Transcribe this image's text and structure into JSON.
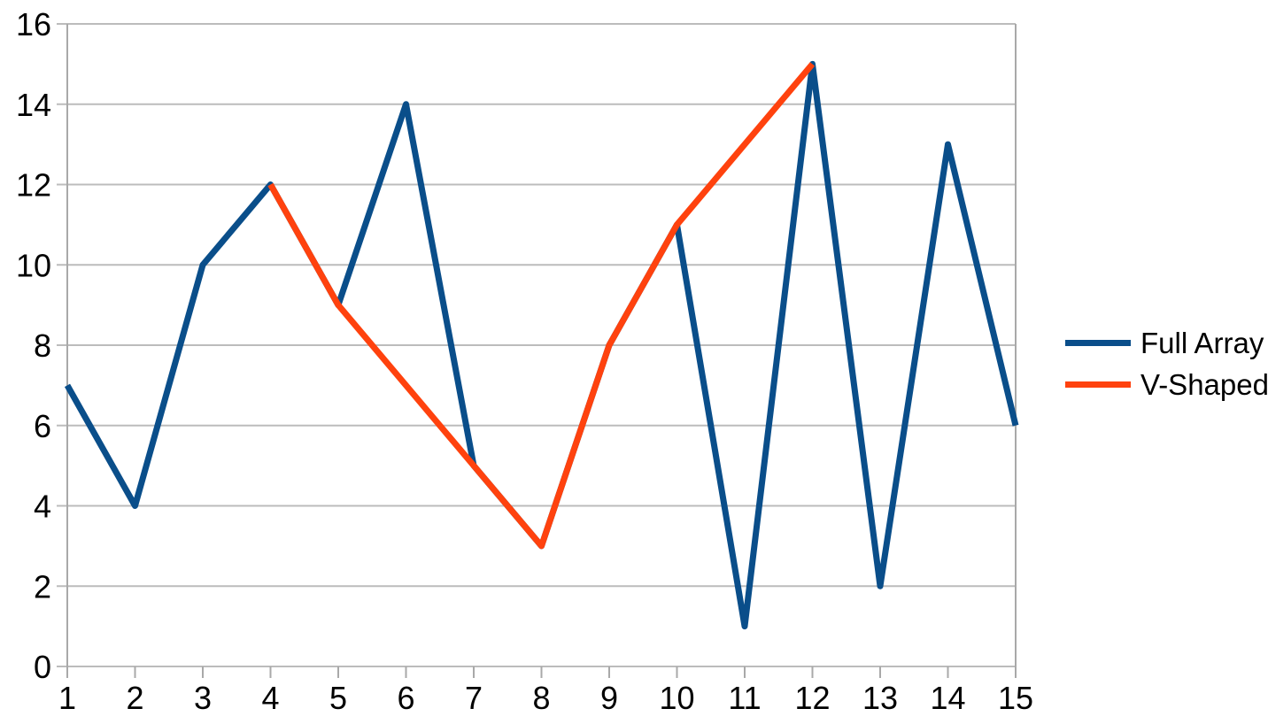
{
  "chart_data": {
    "type": "line",
    "title": "",
    "xlabel": "",
    "ylabel": "",
    "xlim": [
      1,
      15
    ],
    "ylim": [
      0,
      16
    ],
    "x_ticks": [
      "1",
      "2",
      "3",
      "4",
      "5",
      "6",
      "7",
      "8",
      "9",
      "10",
      "11",
      "12",
      "13",
      "14",
      "15"
    ],
    "y_ticks": [
      "0",
      "2",
      "4",
      "6",
      "8",
      "10",
      "12",
      "14",
      "16"
    ],
    "grid": "horizontal",
    "legend_position": "right",
    "series": [
      {
        "name": "Full Array",
        "color": "#0a4e8a",
        "x": [
          1,
          2,
          3,
          4,
          5,
          6,
          7,
          8,
          9,
          10,
          11,
          12,
          13,
          14,
          15
        ],
        "values": [
          7,
          4,
          10,
          12,
          9,
          14,
          5,
          3,
          8,
          11,
          1,
          15,
          2,
          13,
          6
        ]
      },
      {
        "name": "V-Shaped",
        "color": "#ff420e",
        "x": [
          4,
          5,
          6,
          7,
          8,
          9,
          10,
          11,
          12
        ],
        "values": [
          12,
          9,
          7,
          5,
          3,
          8,
          11,
          13,
          15
        ]
      }
    ]
  },
  "colors": {
    "grid": "#bcbcbc",
    "border": "#a9a9a9",
    "label": "#000000"
  }
}
